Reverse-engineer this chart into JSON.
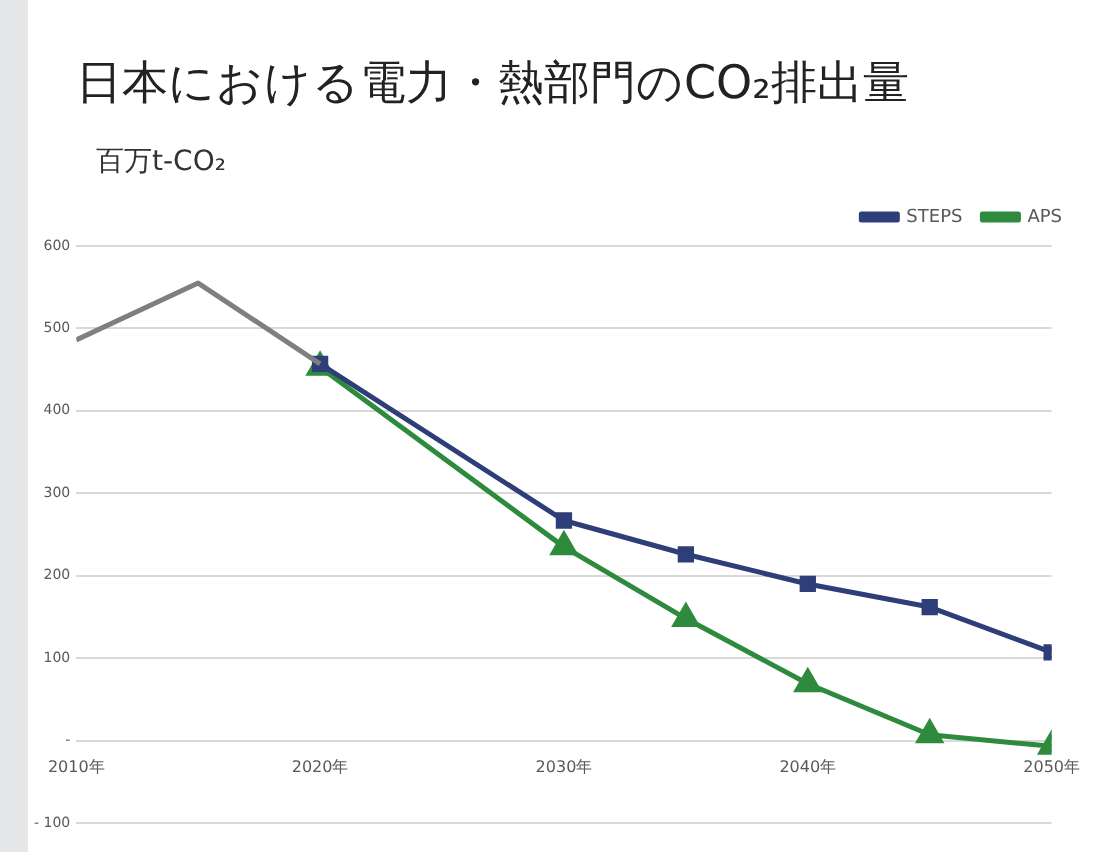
{
  "chart_data": {
    "type": "line",
    "title": "日本における電力・熱部門のCO₂排出量",
    "ylabel": "百万t-CO₂",
    "xlim": [
      2010,
      2050
    ],
    "xticks": [
      {
        "value": 2010,
        "label": "2010年"
      },
      {
        "value": 2020,
        "label": "2020年"
      },
      {
        "value": 2030,
        "label": "2030年"
      },
      {
        "value": 2040,
        "label": "2040年"
      },
      {
        "value": 2050,
        "label": "2050年"
      }
    ],
    "ylim": [
      -100,
      600
    ],
    "yticks": [
      {
        "value": -100,
        "label": "- 100"
      },
      {
        "value": 0,
        "label": "-"
      },
      100,
      200,
      300,
      400,
      500,
      600
    ],
    "series": [
      {
        "color": "#7f7f7f",
        "x": [
          2010,
          2015,
          2020
        ],
        "values": [
          486,
          555,
          457
        ],
        "marker": "none"
      },
      {
        "name": "STEPS",
        "color": "#2e3e78",
        "x": [
          2020,
          2030,
          2035,
          2040,
          2045,
          2050
        ],
        "values": [
          457,
          267,
          226,
          190,
          162,
          107
        ],
        "marker": "square"
      },
      {
        "name": "APS",
        "color": "#2e8b3e",
        "x": [
          2020,
          2030,
          2035,
          2040,
          2045,
          2050
        ],
        "values": [
          453,
          235,
          148,
          69,
          7,
          -7
        ],
        "marker": "triangle"
      }
    ],
    "grid": "y",
    "legend": "top right",
    "line_style": "solid"
  }
}
